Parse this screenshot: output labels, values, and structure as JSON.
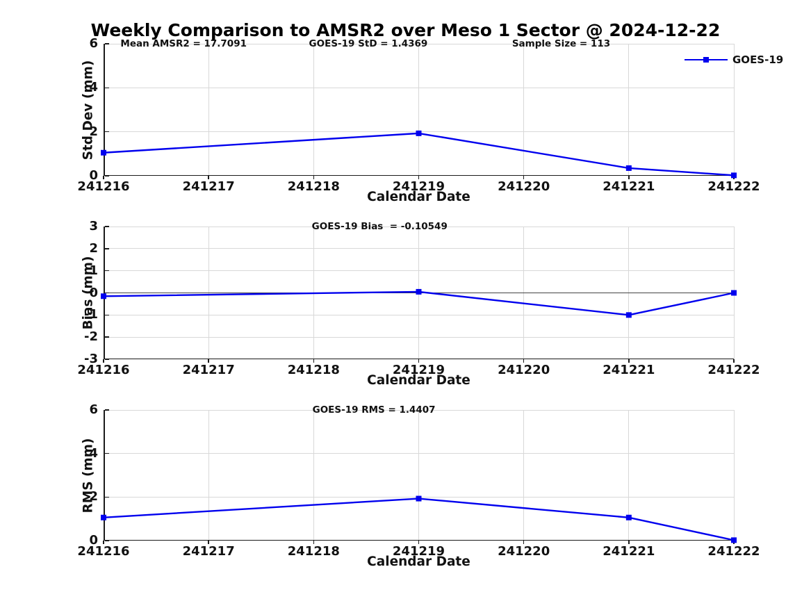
{
  "title": "Weekly Comparison to AMSR2 over Meso 1 Sector @ 2024-12-22",
  "legend": {
    "label": "GOES-19"
  },
  "colors": {
    "line": "#0000EE",
    "grid": "#D8D8D8",
    "axis": "#1A1A1A",
    "zero_line": "#444444",
    "text": "#111111",
    "title": "#000000"
  },
  "chart_data": [
    {
      "type": "line",
      "name": "std-dev",
      "ylabel": "Std Dev (mm)",
      "xlabel": "Calendar Date",
      "ylim": [
        0,
        6
      ],
      "yticks": [
        0,
        2,
        4,
        6
      ],
      "xticks": [
        241216,
        241217,
        241218,
        241219,
        241220,
        241221,
        241222
      ],
      "grid": true,
      "zero_line": false,
      "show_legend": true,
      "legend_position": "top-right",
      "series": [
        {
          "name": "GOES-19",
          "marker": "square",
          "x": [
            241216,
            241219,
            241221,
            241222
          ],
          "y": [
            1.05,
            1.93,
            0.35,
            0.02
          ]
        }
      ],
      "annotations": [
        {
          "text": "Mean AMSR2 = 17.7091",
          "xfrac": 0.127
        },
        {
          "text": "GOES-19 StD = 1.4369",
          "xfrac": 0.42
        },
        {
          "text": "Sample Size = 113",
          "xfrac": 0.726
        }
      ]
    },
    {
      "type": "line",
      "name": "bias",
      "ylabel": "Bias (mm)",
      "xlabel": "Calendar Date",
      "ylim": [
        -3,
        3
      ],
      "yticks": [
        -3,
        -2,
        -1,
        0,
        1,
        2,
        3
      ],
      "xticks": [
        241216,
        241217,
        241218,
        241219,
        241220,
        241221,
        241222
      ],
      "grid": true,
      "zero_line": true,
      "show_legend": false,
      "series": [
        {
          "name": "GOES-19",
          "marker": "square",
          "x": [
            241216,
            241219,
            241221,
            241222
          ],
          "y": [
            -0.15,
            0.05,
            -1.0,
            0.0
          ]
        }
      ],
      "annotations": [
        {
          "text": "GOES-19 Bias  = -0.10549",
          "xfrac": 0.438
        }
      ]
    },
    {
      "type": "line",
      "name": "rms",
      "ylabel": "RMS (mm)",
      "xlabel": "Calendar Date",
      "ylim": [
        0,
        6
      ],
      "yticks": [
        0,
        2,
        4,
        6
      ],
      "xticks": [
        241216,
        241217,
        241218,
        241219,
        241220,
        241221,
        241222
      ],
      "grid": true,
      "zero_line": false,
      "show_legend": false,
      "series": [
        {
          "name": "GOES-19",
          "marker": "square",
          "x": [
            241216,
            241219,
            241221,
            241222
          ],
          "y": [
            1.06,
            1.93,
            1.06,
            0.02
          ]
        }
      ],
      "annotations": [
        {
          "text": "GOES-19 RMS = 1.4407",
          "xfrac": 0.429
        }
      ]
    }
  ]
}
